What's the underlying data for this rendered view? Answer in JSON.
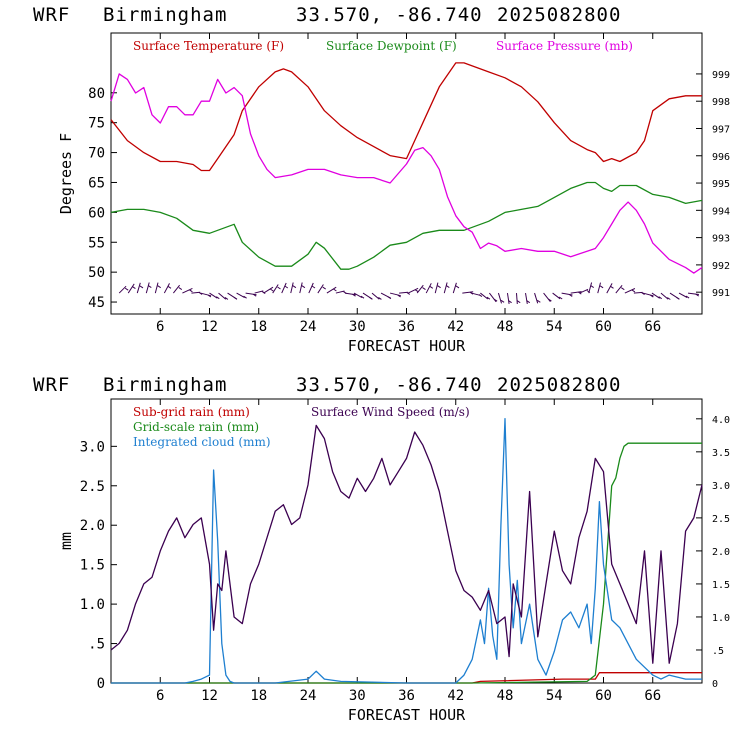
{
  "header": {
    "model": "WRF",
    "site": "Birmingham",
    "coords": "33.570, -86.740",
    "init": "2025082800"
  },
  "colors": {
    "temperature": "#c00000",
    "dewpoint": "#1a8a1a",
    "pressure": "#e000e0",
    "subgrid_rain": "#c00000",
    "gridscale_rain": "#1a8a1a",
    "cloud": "#1e7fd0",
    "wind": "#3b0050",
    "barbs": "#3b0050"
  },
  "chart_data": [
    {
      "type": "line",
      "xlabel": "FORECAST HOUR",
      "ylabel": "Degrees F",
      "xlim": [
        0,
        72
      ],
      "ylim": [
        43,
        90
      ],
      "y2lim": [
        990.2,
        1000.5
      ],
      "xticks": [
        "6",
        "12",
        "18",
        "24",
        "30",
        "36",
        "42",
        "48",
        "54",
        "60",
        "66"
      ],
      "yticks": [
        "45",
        "50",
        "55",
        "60",
        "65",
        "70",
        "75",
        "80"
      ],
      "y2ticks": [
        "991",
        "992",
        "993",
        "994",
        "995",
        "996",
        "997",
        "998",
        "999"
      ],
      "series": [
        {
          "name": "Surface Temperature (F)",
          "axis": "left",
          "x": [
            0,
            2,
            4,
            6,
            8,
            10,
            11,
            12,
            13,
            14,
            15,
            16,
            18,
            20,
            21,
            22,
            24,
            26,
            28,
            30,
            32,
            34,
            36,
            38,
            40,
            42,
            43,
            44,
            46,
            48,
            50,
            52,
            54,
            56,
            58,
            59,
            60,
            61,
            62,
            64,
            65,
            66,
            68,
            70,
            72
          ],
          "y": [
            75.5,
            72,
            70,
            68.5,
            68.5,
            68,
            67,
            67,
            69,
            71,
            73,
            77,
            81,
            83.5,
            84,
            83.5,
            81,
            77,
            74.5,
            72.5,
            71,
            69.5,
            69,
            75,
            81,
            85,
            85,
            84.5,
            83.5,
            82.5,
            81,
            78.5,
            75,
            72,
            70.5,
            70,
            68.5,
            69,
            68.5,
            70,
            72,
            77,
            79,
            79.5,
            79.5
          ]
        },
        {
          "name": "Surface Dewpoint (F)",
          "axis": "left",
          "x": [
            0,
            2,
            4,
            6,
            8,
            10,
            12,
            14,
            15,
            16,
            18,
            20,
            22,
            24,
            25,
            26,
            28,
            29,
            30,
            32,
            34,
            36,
            38,
            40,
            42,
            43,
            44,
            46,
            48,
            50,
            52,
            54,
            56,
            58,
            59,
            60,
            61,
            62,
            64,
            66,
            68,
            70,
            72
          ],
          "y": [
            60,
            60.5,
            60.5,
            60,
            59,
            57,
            56.5,
            57.5,
            58,
            55,
            52.5,
            51,
            51,
            53,
            55,
            54,
            50.5,
            50.5,
            51,
            52.5,
            54.5,
            55,
            56.5,
            57,
            57,
            57,
            57.5,
            58.5,
            60,
            60.5,
            61,
            62.5,
            64,
            65,
            65,
            64,
            63.5,
            64.5,
            64.5,
            63,
            62.5,
            61.5,
            62
          ]
        },
        {
          "name": "Surface Pressure (mb)",
          "axis": "right",
          "x": [
            0,
            1,
            2,
            3,
            4,
            5,
            6,
            7,
            8,
            9,
            10,
            11,
            12,
            13,
            14,
            15,
            16,
            17,
            18,
            19,
            20,
            22,
            24,
            26,
            28,
            30,
            32,
            34,
            36,
            37,
            38,
            39,
            40,
            41,
            42,
            43,
            44,
            45,
            46,
            47,
            48,
            50,
            52,
            54,
            56,
            58,
            59,
            60,
            61,
            62,
            63,
            64,
            65,
            66,
            68,
            70,
            71,
            72
          ],
          "y": [
            998,
            999,
            998.8,
            998.3,
            998.5,
            997.5,
            997.2,
            997.8,
            997.8,
            997.5,
            997.5,
            998,
            998,
            998.8,
            998.3,
            998.5,
            998.2,
            996.8,
            996,
            995.5,
            995.2,
            995.3,
            995.5,
            995.5,
            995.3,
            995.2,
            995.2,
            995,
            995.7,
            996.2,
            996.3,
            996,
            995.5,
            994.5,
            993.8,
            993.4,
            993.2,
            992.6,
            992.8,
            992.7,
            992.5,
            992.6,
            992.5,
            992.5,
            992.3,
            992.5,
            992.6,
            993,
            993.5,
            994,
            994.3,
            994,
            993.5,
            992.8,
            992.2,
            991.9,
            991.7,
            991.9
          ]
        }
      ]
    },
    {
      "type": "line",
      "xlabel": "FORECAST HOUR",
      "ylabel": "mm",
      "xlim": [
        0,
        72
      ],
      "ylim": [
        0,
        3.6
      ],
      "y2lim": [
        0,
        4.3
      ],
      "xticks": [
        "6",
        "12",
        "18",
        "24",
        "30",
        "36",
        "42",
        "48",
        "54",
        "60",
        "66"
      ],
      "yticks": [
        "0",
        ".5",
        "1.0",
        "1.5",
        "2.0",
        "2.5",
        "3.0"
      ],
      "y2ticks": [
        "0",
        ".5",
        "1.0",
        "1.5",
        "2.0",
        "2.5",
        "3.0",
        "3.5",
        "4.0"
      ],
      "series": [
        {
          "name": "Sub-grid rain (mm)",
          "axis": "left",
          "x": [
            0,
            44,
            45,
            55,
            59,
            59.5,
            72
          ],
          "y": [
            0,
            0,
            0.02,
            0.05,
            0.05,
            0.13,
            0.13
          ]
        },
        {
          "name": "Grid-scale rain (mm)",
          "axis": "left",
          "x": [
            0,
            44,
            58,
            59,
            60,
            61,
            61.5,
            62,
            62.5,
            63,
            72
          ],
          "y": [
            0,
            0,
            0.02,
            0.1,
            1.0,
            2.5,
            2.6,
            2.85,
            3.0,
            3.04,
            3.04
          ]
        },
        {
          "name": "Integrated cloud (mm)",
          "axis": "left",
          "x": [
            0,
            9,
            10,
            11,
            12,
            12.5,
            13,
            13.5,
            14,
            14.5,
            15,
            16,
            20,
            24,
            25,
            26,
            28,
            36,
            40,
            42,
            43,
            44,
            45,
            45.5,
            46,
            46.5,
            47,
            47.5,
            48,
            48.5,
            49,
            49.5,
            50,
            51,
            52,
            53,
            54,
            55,
            56,
            57,
            58,
            58.5,
            59,
            59.5,
            60,
            61,
            62,
            63,
            64,
            65,
            66,
            67,
            68,
            70,
            72
          ],
          "y": [
            0,
            0,
            0.02,
            0.05,
            0.1,
            2.7,
            1.8,
            0.5,
            0.1,
            0.02,
            0,
            0,
            0,
            0.05,
            0.15,
            0.05,
            0.02,
            0,
            0,
            0,
            0.1,
            0.3,
            0.8,
            0.5,
            1.2,
            0.6,
            0.3,
            2.0,
            3.35,
            1.5,
            0.7,
            1.3,
            0.5,
            1.0,
            0.3,
            0.1,
            0.4,
            0.8,
            0.9,
            0.7,
            1.0,
            0.5,
            1.2,
            2.3,
            1.5,
            0.8,
            0.7,
            0.5,
            0.3,
            0.2,
            0.1,
            0.05,
            0.1,
            0.05,
            0.05
          ]
        },
        {
          "name": "Surface Wind Speed (m/s)",
          "axis": "right",
          "x": [
            0,
            1,
            2,
            3,
            4,
            5,
            6,
            7,
            8,
            9,
            10,
            11,
            12,
            12.5,
            13,
            13.5,
            14,
            15,
            16,
            17,
            18,
            19,
            20,
            21,
            22,
            23,
            24,
            25,
            26,
            27,
            28,
            29,
            30,
            31,
            32,
            33,
            34,
            35,
            36,
            37,
            38,
            39,
            40,
            41,
            42,
            43,
            44,
            45,
            46,
            47,
            48,
            48.5,
            49,
            50,
            51,
            52,
            53,
            54,
            55,
            56,
            57,
            58,
            59,
            60,
            61,
            62,
            63,
            64,
            65,
            66,
            67,
            68,
            69,
            70,
            71,
            72
          ],
          "y": [
            0.5,
            0.6,
            0.8,
            1.2,
            1.5,
            1.6,
            2.0,
            2.3,
            2.5,
            2.2,
            2.4,
            2.5,
            1.8,
            0.8,
            1.5,
            1.4,
            2.0,
            1.0,
            0.9,
            1.5,
            1.8,
            2.2,
            2.6,
            2.7,
            2.4,
            2.5,
            3.0,
            3.9,
            3.7,
            3.2,
            2.9,
            2.8,
            3.1,
            2.9,
            3.1,
            3.4,
            3.0,
            3.2,
            3.4,
            3.8,
            3.6,
            3.3,
            2.9,
            2.3,
            1.7,
            1.4,
            1.3,
            1.1,
            1.4,
            0.9,
            1.0,
            0.4,
            1.5,
            1.0,
            2.9,
            0.7,
            1.5,
            2.3,
            1.7,
            1.5,
            2.2,
            2.6,
            3.4,
            3.2,
            1.8,
            1.5,
            1.2,
            0.9,
            2.0,
            0.3,
            2.0,
            0.3,
            0.9,
            2.3,
            2.5,
            3.0
          ]
        }
      ]
    }
  ]
}
